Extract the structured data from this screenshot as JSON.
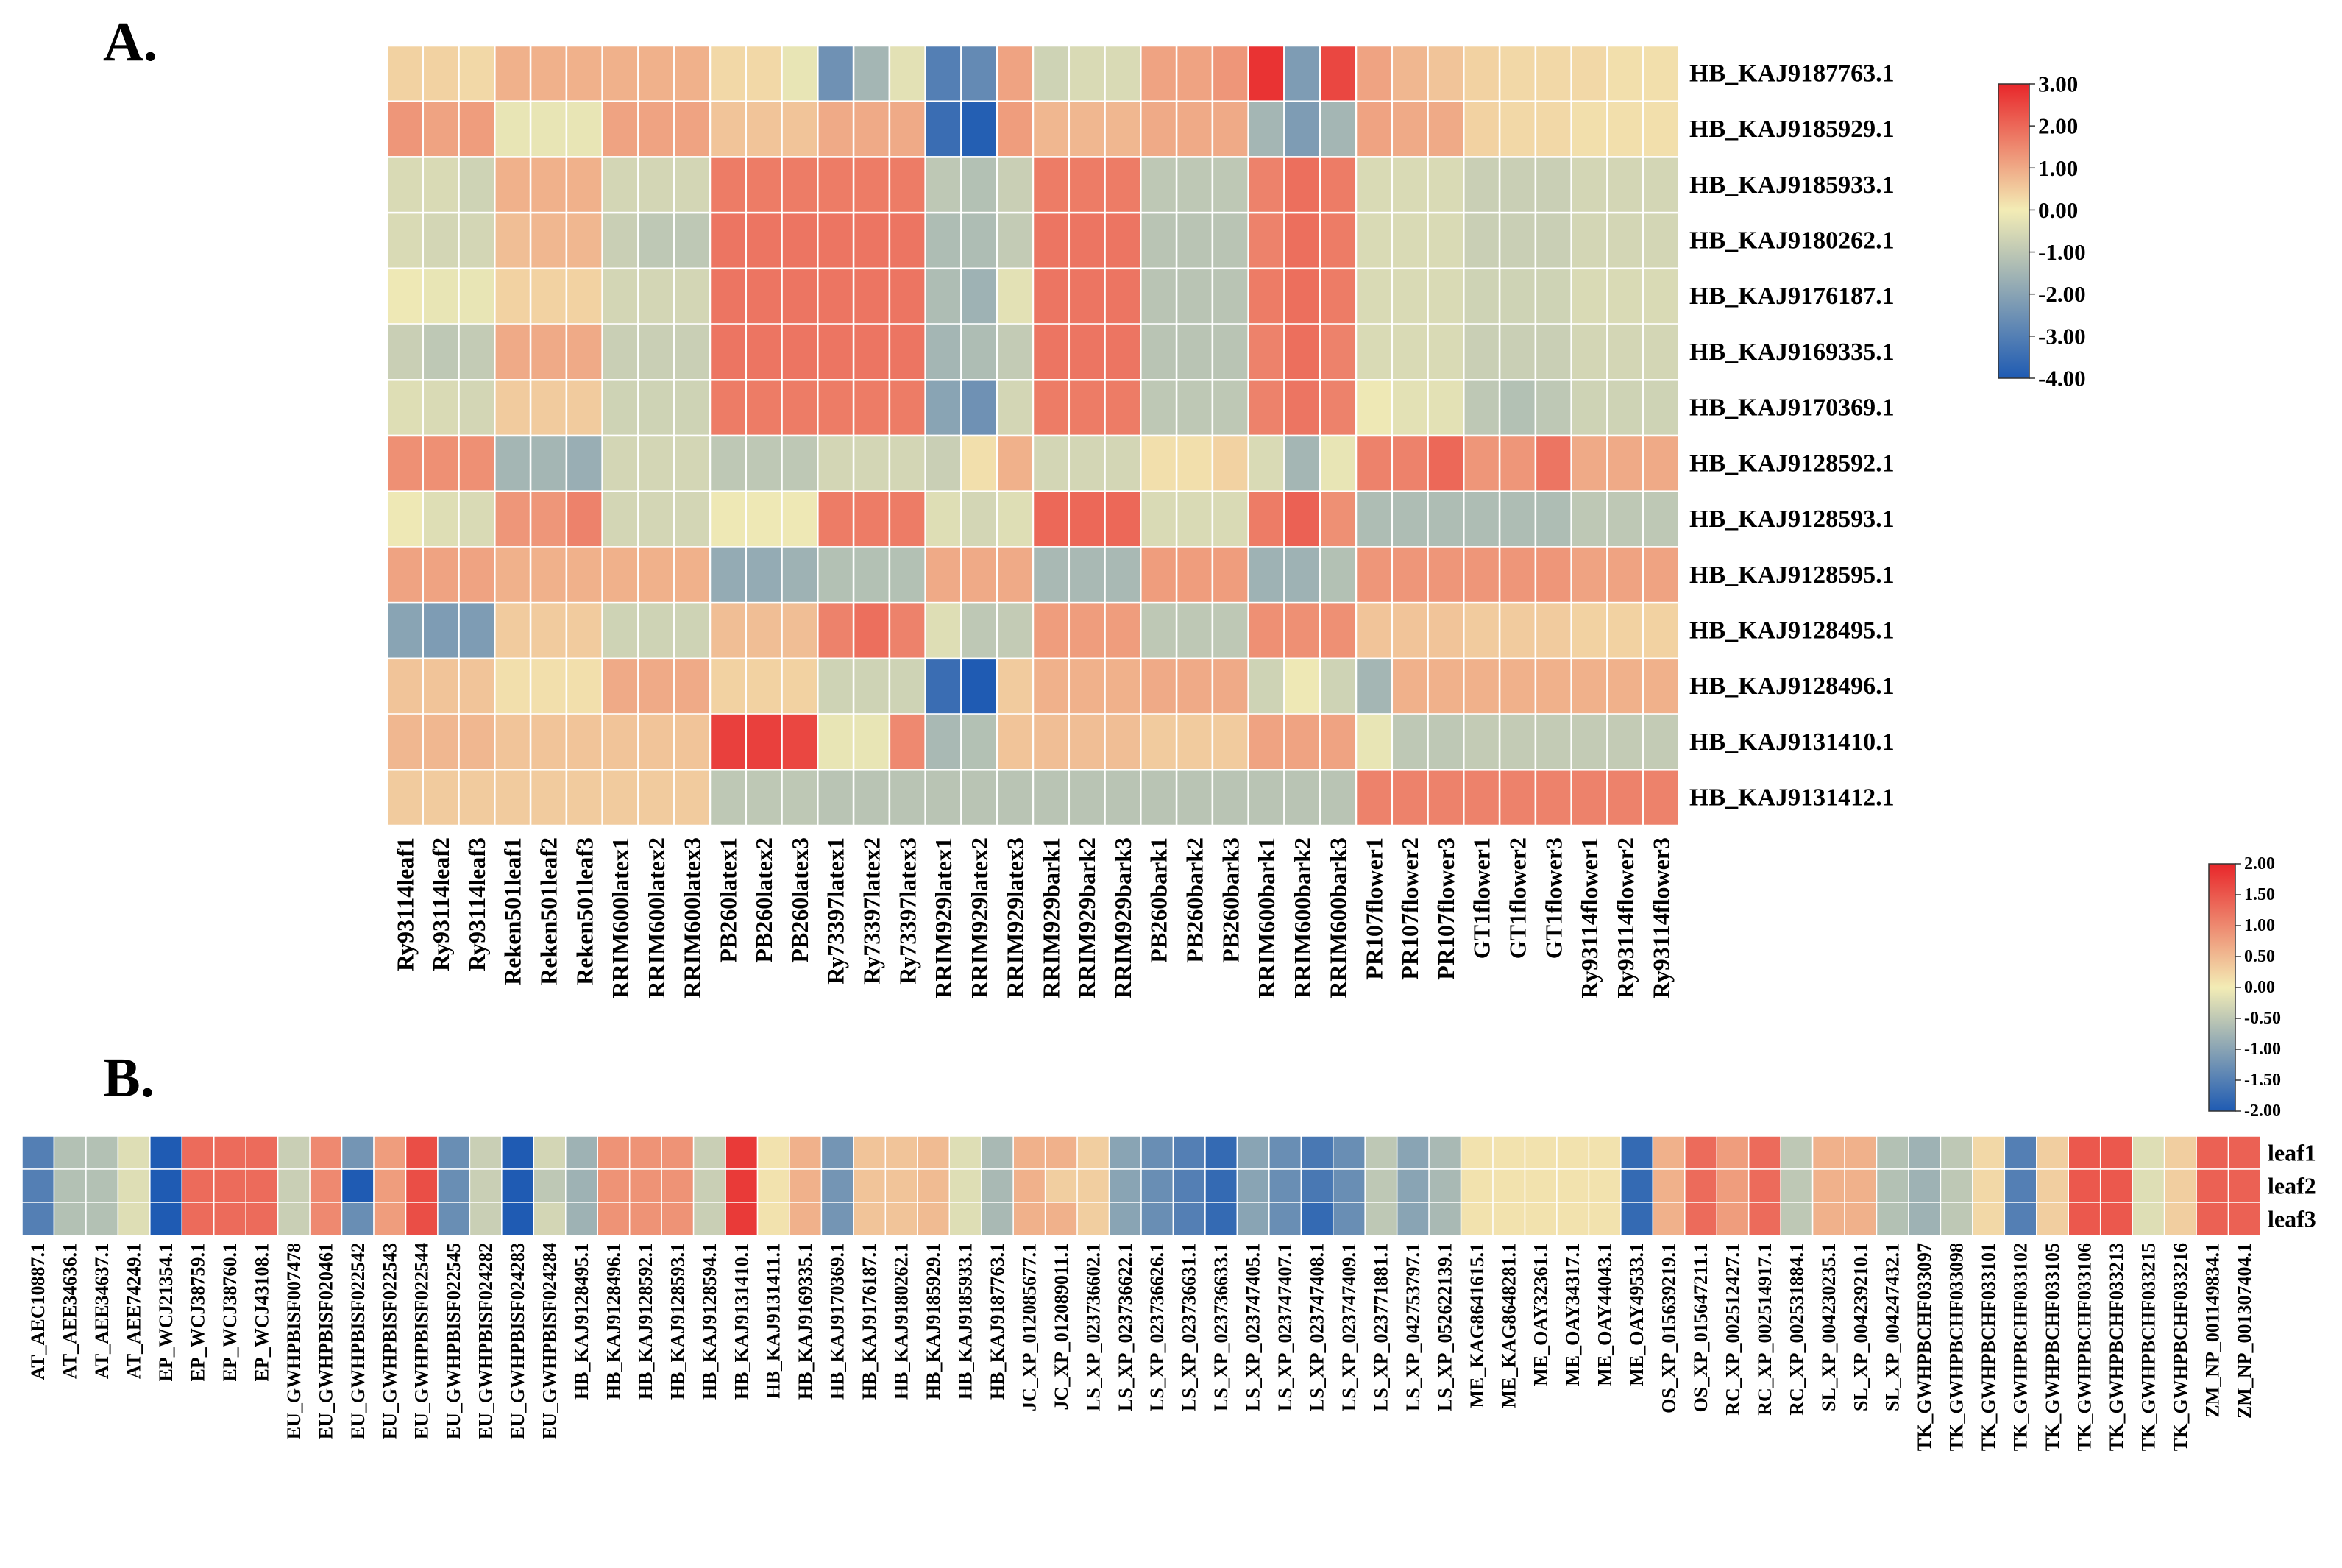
{
  "panel_labels": {
    "a": "A.",
    "b": "B."
  },
  "chart_data": [
    {
      "type": "heatmap",
      "panel": "A.",
      "rows": [
        "HB_KAJ9187763.1",
        "HB_KAJ9185929.1",
        "HB_KAJ9185933.1",
        "HB_KAJ9180262.1",
        "HB_KAJ9176187.1",
        "HB_KAJ9169335.1",
        "HB_KAJ9170369.1",
        "HB_KAJ9128592.1",
        "HB_KAJ9128593.1",
        "HB_KAJ9128595.1",
        "HB_KAJ9128495.1",
        "HB_KAJ9128496.1",
        "HB_KAJ9131410.1",
        "HB_KAJ9131412.1"
      ],
      "columns": [
        "Ry93114leaf1",
        "Ry93114leaf2",
        "Ry93114leaf3",
        "Reken501leaf1",
        "Reken501leaf2",
        "Reken501leaf3",
        "RRIM600latex1",
        "RRIM600latex2",
        "RRIM600latex3",
        "PB260latex1",
        "PB260latex2",
        "PB260latex3",
        "Ry73397latex1",
        "Ry73397latex2",
        "Ry73397latex3",
        "RRIM929latex1",
        "RRIM929latex2",
        "RRIM929latex3",
        "RRIM929bark1",
        "RRIM929bark2",
        "RRIM929bark3",
        "PB260bark1",
        "PB260bark2",
        "PB260bark3",
        "RRIM600bark1",
        "RRIM600bark2",
        "RRIM600bark3",
        "PR107flower1",
        "PR107flower2",
        "PR107flower3",
        "GT1flower1",
        "GT1flower2",
        "GT1flower3",
        "Ry93114flower1",
        "Ry93114flower2",
        "Ry93114flower3"
      ],
      "values": [
        [
          0.4,
          0.4,
          0.3,
          0.9,
          0.9,
          0.9,
          0.9,
          0.9,
          0.9,
          0.3,
          0.3,
          -0.2,
          -2.5,
          -1.5,
          -0.3,
          -3.0,
          -2.7,
          1.1,
          -0.7,
          -0.5,
          -0.5,
          1.1,
          1.1,
          1.3,
          2.8,
          -2.2,
          2.5,
          1.1,
          0.8,
          0.6,
          0.4,
          0.3,
          0.3,
          0.3,
          0.2,
          0.2
        ],
        [
          1.3,
          1.1,
          1.2,
          -0.2,
          -0.2,
          -0.2,
          1.1,
          1.1,
          1.1,
          0.6,
          0.6,
          0.6,
          1.0,
          1.0,
          1.0,
          -3.5,
          -3.9,
          1.2,
          0.8,
          0.8,
          0.8,
          1.0,
          1.0,
          1.0,
          -1.5,
          -2.2,
          -1.5,
          1.1,
          1.0,
          1.0,
          0.4,
          0.3,
          0.3,
          0.2,
          0.2,
          0.2
        ],
        [
          -0.5,
          -0.5,
          -0.7,
          0.9,
          0.9,
          0.9,
          -0.6,
          -0.6,
          -0.6,
          1.7,
          1.7,
          1.7,
          1.7,
          1.7,
          1.7,
          -1.0,
          -1.2,
          -0.8,
          1.7,
          1.7,
          1.7,
          -1.0,
          -1.0,
          -1.0,
          1.6,
          1.9,
          1.7,
          -0.5,
          -0.5,
          -0.5,
          -0.8,
          -0.8,
          -0.8,
          -0.6,
          -0.6,
          -0.6
        ],
        [
          -0.5,
          -0.6,
          -0.6,
          0.7,
          0.8,
          0.8,
          -0.8,
          -1.0,
          -1.0,
          1.8,
          1.8,
          1.8,
          1.8,
          1.8,
          1.8,
          -1.3,
          -1.3,
          -0.9,
          1.8,
          1.8,
          1.8,
          -1.1,
          -1.1,
          -1.1,
          1.6,
          1.9,
          1.7,
          -0.5,
          -0.5,
          -0.5,
          -0.8,
          -0.8,
          -0.8,
          -0.6,
          -0.6,
          -0.6
        ],
        [
          -0.1,
          -0.2,
          -0.2,
          0.4,
          0.4,
          0.4,
          -0.6,
          -0.6,
          -0.6,
          1.8,
          1.8,
          1.8,
          1.8,
          1.8,
          1.8,
          -1.3,
          -1.6,
          -0.3,
          1.8,
          1.8,
          1.8,
          -1.1,
          -1.1,
          -1.1,
          1.7,
          1.9,
          1.7,
          -0.5,
          -0.5,
          -0.5,
          -0.7,
          -0.7,
          -0.7,
          -0.5,
          -0.5,
          -0.5
        ],
        [
          -0.8,
          -1.0,
          -0.9,
          1.0,
          1.0,
          1.0,
          -0.8,
          -0.8,
          -0.8,
          1.8,
          1.8,
          1.8,
          1.8,
          1.8,
          1.8,
          -1.5,
          -1.3,
          -0.9,
          1.8,
          1.8,
          1.8,
          -1.1,
          -1.1,
          -1.1,
          1.6,
          1.9,
          1.6,
          -0.5,
          -0.5,
          -0.5,
          -0.8,
          -0.8,
          -0.8,
          -0.6,
          -0.6,
          -0.6
        ],
        [
          -0.4,
          -0.5,
          -0.6,
          0.5,
          0.5,
          0.5,
          -0.7,
          -0.7,
          -0.7,
          1.7,
          1.7,
          1.7,
          1.7,
          1.7,
          1.7,
          -2.0,
          -2.5,
          -0.6,
          1.7,
          1.7,
          1.7,
          -1.0,
          -1.0,
          -1.0,
          1.6,
          1.8,
          1.6,
          -0.1,
          -0.3,
          -0.3,
          -1.0,
          -1.2,
          -1.0,
          -0.7,
          -0.7,
          -0.7
        ],
        [
          1.4,
          1.4,
          1.4,
          -1.5,
          -1.5,
          -1.7,
          -0.6,
          -0.6,
          -0.6,
          -1.0,
          -1.0,
          -1.0,
          -0.6,
          -0.6,
          -0.6,
          -0.8,
          0.2,
          0.9,
          -0.6,
          -0.6,
          -0.6,
          0.2,
          0.2,
          0.4,
          -0.5,
          -1.5,
          -0.2,
          1.6,
          1.6,
          2.0,
          1.3,
          1.3,
          1.8,
          1.0,
          1.0,
          1.0
        ],
        [
          -0.1,
          -0.4,
          -0.5,
          1.3,
          1.3,
          1.6,
          -0.6,
          -0.6,
          -0.6,
          -0.1,
          -0.1,
          -0.1,
          1.7,
          1.7,
          1.7,
          -0.4,
          -0.6,
          -0.4,
          2.0,
          2.0,
          2.0,
          -0.5,
          -0.5,
          -0.5,
          1.7,
          2.1,
          1.4,
          -1.3,
          -1.3,
          -1.3,
          -1.3,
          -1.3,
          -1.3,
          -1.0,
          -1.0,
          -1.0
        ],
        [
          1.1,
          1.1,
          1.1,
          0.9,
          0.9,
          0.9,
          0.9,
          0.9,
          0.9,
          -1.8,
          -1.8,
          -1.6,
          -1.2,
          -1.2,
          -1.2,
          1.0,
          1.0,
          1.0,
          -1.4,
          -1.4,
          -1.4,
          1.2,
          1.2,
          1.2,
          -1.6,
          -1.6,
          -1.2,
          1.3,
          1.3,
          1.3,
          1.3,
          1.3,
          1.3,
          1.1,
          1.1,
          1.1
        ],
        [
          -2.0,
          -2.2,
          -2.2,
          0.5,
          0.5,
          0.5,
          -0.7,
          -0.7,
          -0.7,
          0.7,
          0.7,
          0.7,
          1.6,
          1.9,
          1.6,
          -0.4,
          -1.0,
          -0.9,
          1.2,
          1.2,
          1.2,
          -1.0,
          -1.0,
          -1.0,
          1.4,
          1.4,
          1.4,
          0.6,
          0.6,
          0.6,
          0.5,
          0.5,
          0.5,
          0.4,
          0.4,
          0.4
        ],
        [
          0.6,
          0.6,
          0.6,
          0.2,
          0.2,
          0.2,
          1.0,
          1.0,
          1.0,
          0.4,
          0.4,
          0.4,
          -0.7,
          -0.7,
          -0.7,
          -3.5,
          -4.0,
          0.5,
          0.9,
          0.9,
          0.9,
          1.0,
          1.0,
          1.0,
          -0.7,
          -0.1,
          -0.7,
          -1.5,
          0.9,
          0.9,
          0.9,
          0.9,
          0.9,
          0.9,
          0.9,
          0.9
        ],
        [
          0.8,
          0.8,
          0.8,
          0.6,
          0.6,
          0.6,
          0.6,
          0.6,
          0.6,
          2.6,
          2.6,
          2.5,
          -0.2,
          -0.2,
          1.5,
          -1.4,
          -1.2,
          0.6,
          0.7,
          0.7,
          0.7,
          0.5,
          0.5,
          0.5,
          1.1,
          1.1,
          1.1,
          -0.2,
          -1.0,
          -1.0,
          -0.9,
          -0.9,
          -0.9,
          -0.9,
          -0.9,
          -0.9
        ],
        [
          0.5,
          0.5,
          0.5,
          0.5,
          0.5,
          0.5,
          0.5,
          0.5,
          0.5,
          -1.0,
          -1.0,
          -1.0,
          -1.1,
          -1.1,
          -1.1,
          -1.1,
          -1.1,
          -1.1,
          -1.1,
          -1.1,
          -1.1,
          -1.1,
          -1.1,
          -1.1,
          -1.1,
          -1.1,
          -1.1,
          1.6,
          1.6,
          1.6,
          1.6,
          1.6,
          1.6,
          1.6,
          1.6,
          1.6
        ]
      ],
      "colorbar": {
        "min": -4,
        "max": 3,
        "tick_labels": [
          "3.00",
          "2.00",
          "1.00",
          "0.00",
          "-1.00",
          "-2.00",
          "-3.00",
          "-4.00"
        ]
      },
      "colors": {
        "low": "#1f5bb3",
        "mid": "#f3ecb5",
        "high": "#e8262a"
      }
    },
    {
      "type": "heatmap",
      "panel": "B.",
      "rows": [
        "leaf1",
        "leaf2",
        "leaf3"
      ],
      "columns": [
        "AT_AEC10887.1",
        "AT_AEE34636.1",
        "AT_AEE34637.1",
        "AT_AEE74249.1",
        "EP_WCJ21354.1",
        "EP_WCJ38759.1",
        "EP_WCJ38760.1",
        "EP_WCJ43108.1",
        "EU_GWHPBISF007478",
        "EU_GWHPBISF020461",
        "EU_GWHPBISF022542",
        "EU_GWHPBISF022543",
        "EU_GWHPBISF022544",
        "EU_GWHPBISF022545",
        "EU_GWHPBISF024282",
        "EU_GWHPBISF024283",
        "EU_GWHPBISF024284",
        "HB_KAJ9128495.1",
        "HB_KAJ9128496.1",
        "HB_KAJ9128592.1",
        "HB_KAJ9128593.1",
        "HB_KAJ9128594.1",
        "HB_KAJ9131410.1",
        "HB_KAJ9131411.1",
        "HB_KAJ9169335.1",
        "HB_KAJ9170369.1",
        "HB_KAJ9176187.1",
        "HB_KAJ9180262.1",
        "HB_KAJ9185929.1",
        "HB_KAJ9185933.1",
        "HB_KAJ9187763.1",
        "JC_XP_012085677.1",
        "JC_XP_012089011.1",
        "LS_XP_023736602.1",
        "LS_XP_023736622.1",
        "LS_XP_023736626.1",
        "LS_XP_023736631.1",
        "LS_XP_023736633.1",
        "LS_XP_023747405.1",
        "LS_XP_023747407.1",
        "LS_XP_023747408.1",
        "LS_XP_023747409.1",
        "LS_XP_023771881.1",
        "LS_XP_042753797.1",
        "LS_XP_052622139.1",
        "ME_KAG8641615.1",
        "ME_KAG8648281.1",
        "ME_OAY32361.1",
        "ME_OAY34317.1",
        "ME_OAY44043.1",
        "ME_OAY49533.1",
        "OS_XP_015639219.1",
        "OS_XP_015647211.1",
        "RC_XP_002512427.1",
        "RC_XP_002514917.1",
        "RC_XP_002531884.1",
        "SL_XP_004230235.1",
        "SL_XP_004239210.1",
        "SL_XP_004247432.1",
        "TK_GWHPBCHF033097",
        "TK_GWHPBCHF033098",
        "TK_GWHPBCHF033101",
        "TK_GWHPBCHF033102",
        "TK_GWHPBCHF033105",
        "TK_GWHPBCHF033106",
        "TK_GWHPBCHF033213",
        "TK_GWHPBCHF033215",
        "TK_GWHPBCHF033216",
        "ZM_NP_001149834.1",
        "ZM_NP_001307404.1"
      ],
      "values": [
        [
          -1.5,
          -0.6,
          -0.6,
          -0.2,
          -2.0,
          1.3,
          1.3,
          1.3,
          -0.4,
          1.0,
          -1.2,
          0.8,
          1.6,
          -1.3,
          -0.4,
          -2.0,
          -0.3,
          -0.8,
          0.9,
          0.9,
          0.9,
          -0.4,
          1.8,
          0.1,
          0.6,
          -1.2,
          0.4,
          0.4,
          0.5,
          -0.2,
          -0.7,
          0.6,
          0.6,
          0.3,
          -1.0,
          -1.3,
          -1.5,
          -1.8,
          -1.0,
          -1.3,
          -1.6,
          -1.3,
          -0.5,
          -1.0,
          -0.7,
          0.1,
          0.1,
          0.1,
          0.1,
          0.1,
          -1.8,
          0.6,
          1.3,
          0.8,
          1.3,
          -0.5,
          0.6,
          0.6,
          -0.6,
          -0.8,
          -0.5,
          0.2,
          -1.5,
          0.3,
          1.5,
          1.5,
          -0.2,
          0.3,
          1.4,
          1.4
        ],
        [
          -1.5,
          -0.6,
          -0.6,
          -0.2,
          -2.0,
          1.3,
          1.3,
          1.3,
          -0.4,
          1.0,
          -2.0,
          0.8,
          1.6,
          -1.3,
          -0.4,
          -2.0,
          -0.5,
          -0.8,
          0.9,
          0.9,
          0.9,
          -0.4,
          1.8,
          0.1,
          0.6,
          -1.2,
          0.4,
          0.4,
          0.5,
          -0.2,
          -0.7,
          0.6,
          0.3,
          0.3,
          -1.0,
          -1.3,
          -1.5,
          -1.8,
          -1.0,
          -1.3,
          -1.6,
          -1.3,
          -0.5,
          -1.0,
          -0.7,
          0.1,
          0.1,
          0.1,
          0.1,
          0.1,
          -1.8,
          0.6,
          1.3,
          0.8,
          1.3,
          -0.5,
          0.6,
          0.6,
          -0.6,
          -0.8,
          -0.5,
          0.2,
          -1.5,
          0.3,
          1.5,
          1.5,
          -0.2,
          0.3,
          1.4,
          1.4
        ],
        [
          -1.5,
          -0.6,
          -0.6,
          -0.2,
          -2.0,
          1.3,
          1.3,
          1.3,
          -0.4,
          1.0,
          -1.3,
          0.8,
          1.6,
          -1.3,
          -0.4,
          -2.0,
          -0.3,
          -0.8,
          0.9,
          0.9,
          0.9,
          -0.4,
          1.8,
          0.1,
          0.6,
          -1.2,
          0.4,
          0.4,
          0.5,
          -0.2,
          -0.7,
          0.6,
          0.6,
          0.3,
          -1.0,
          -1.3,
          -1.5,
          -1.8,
          -1.0,
          -1.3,
          -1.8,
          -1.3,
          -0.5,
          -1.0,
          -0.7,
          0.1,
          0.1,
          0.1,
          0.1,
          0.1,
          -1.8,
          0.6,
          1.3,
          0.8,
          1.3,
          -0.5,
          0.6,
          0.6,
          -0.6,
          -0.8,
          -0.5,
          0.2,
          -1.5,
          0.3,
          1.5,
          1.5,
          -0.2,
          0.3,
          1.4,
          1.4
        ]
      ],
      "colorbar": {
        "min": -2,
        "max": 2,
        "tick_labels": [
          "2.00",
          "1.50",
          "1.00",
          "0.50",
          "0.00",
          "-0.50",
          "-1.00",
          "-1.50",
          "-2.00"
        ]
      },
      "colors": {
        "low": "#1f5bb3",
        "mid": "#f3ecb5",
        "high": "#e8262a"
      }
    }
  ]
}
